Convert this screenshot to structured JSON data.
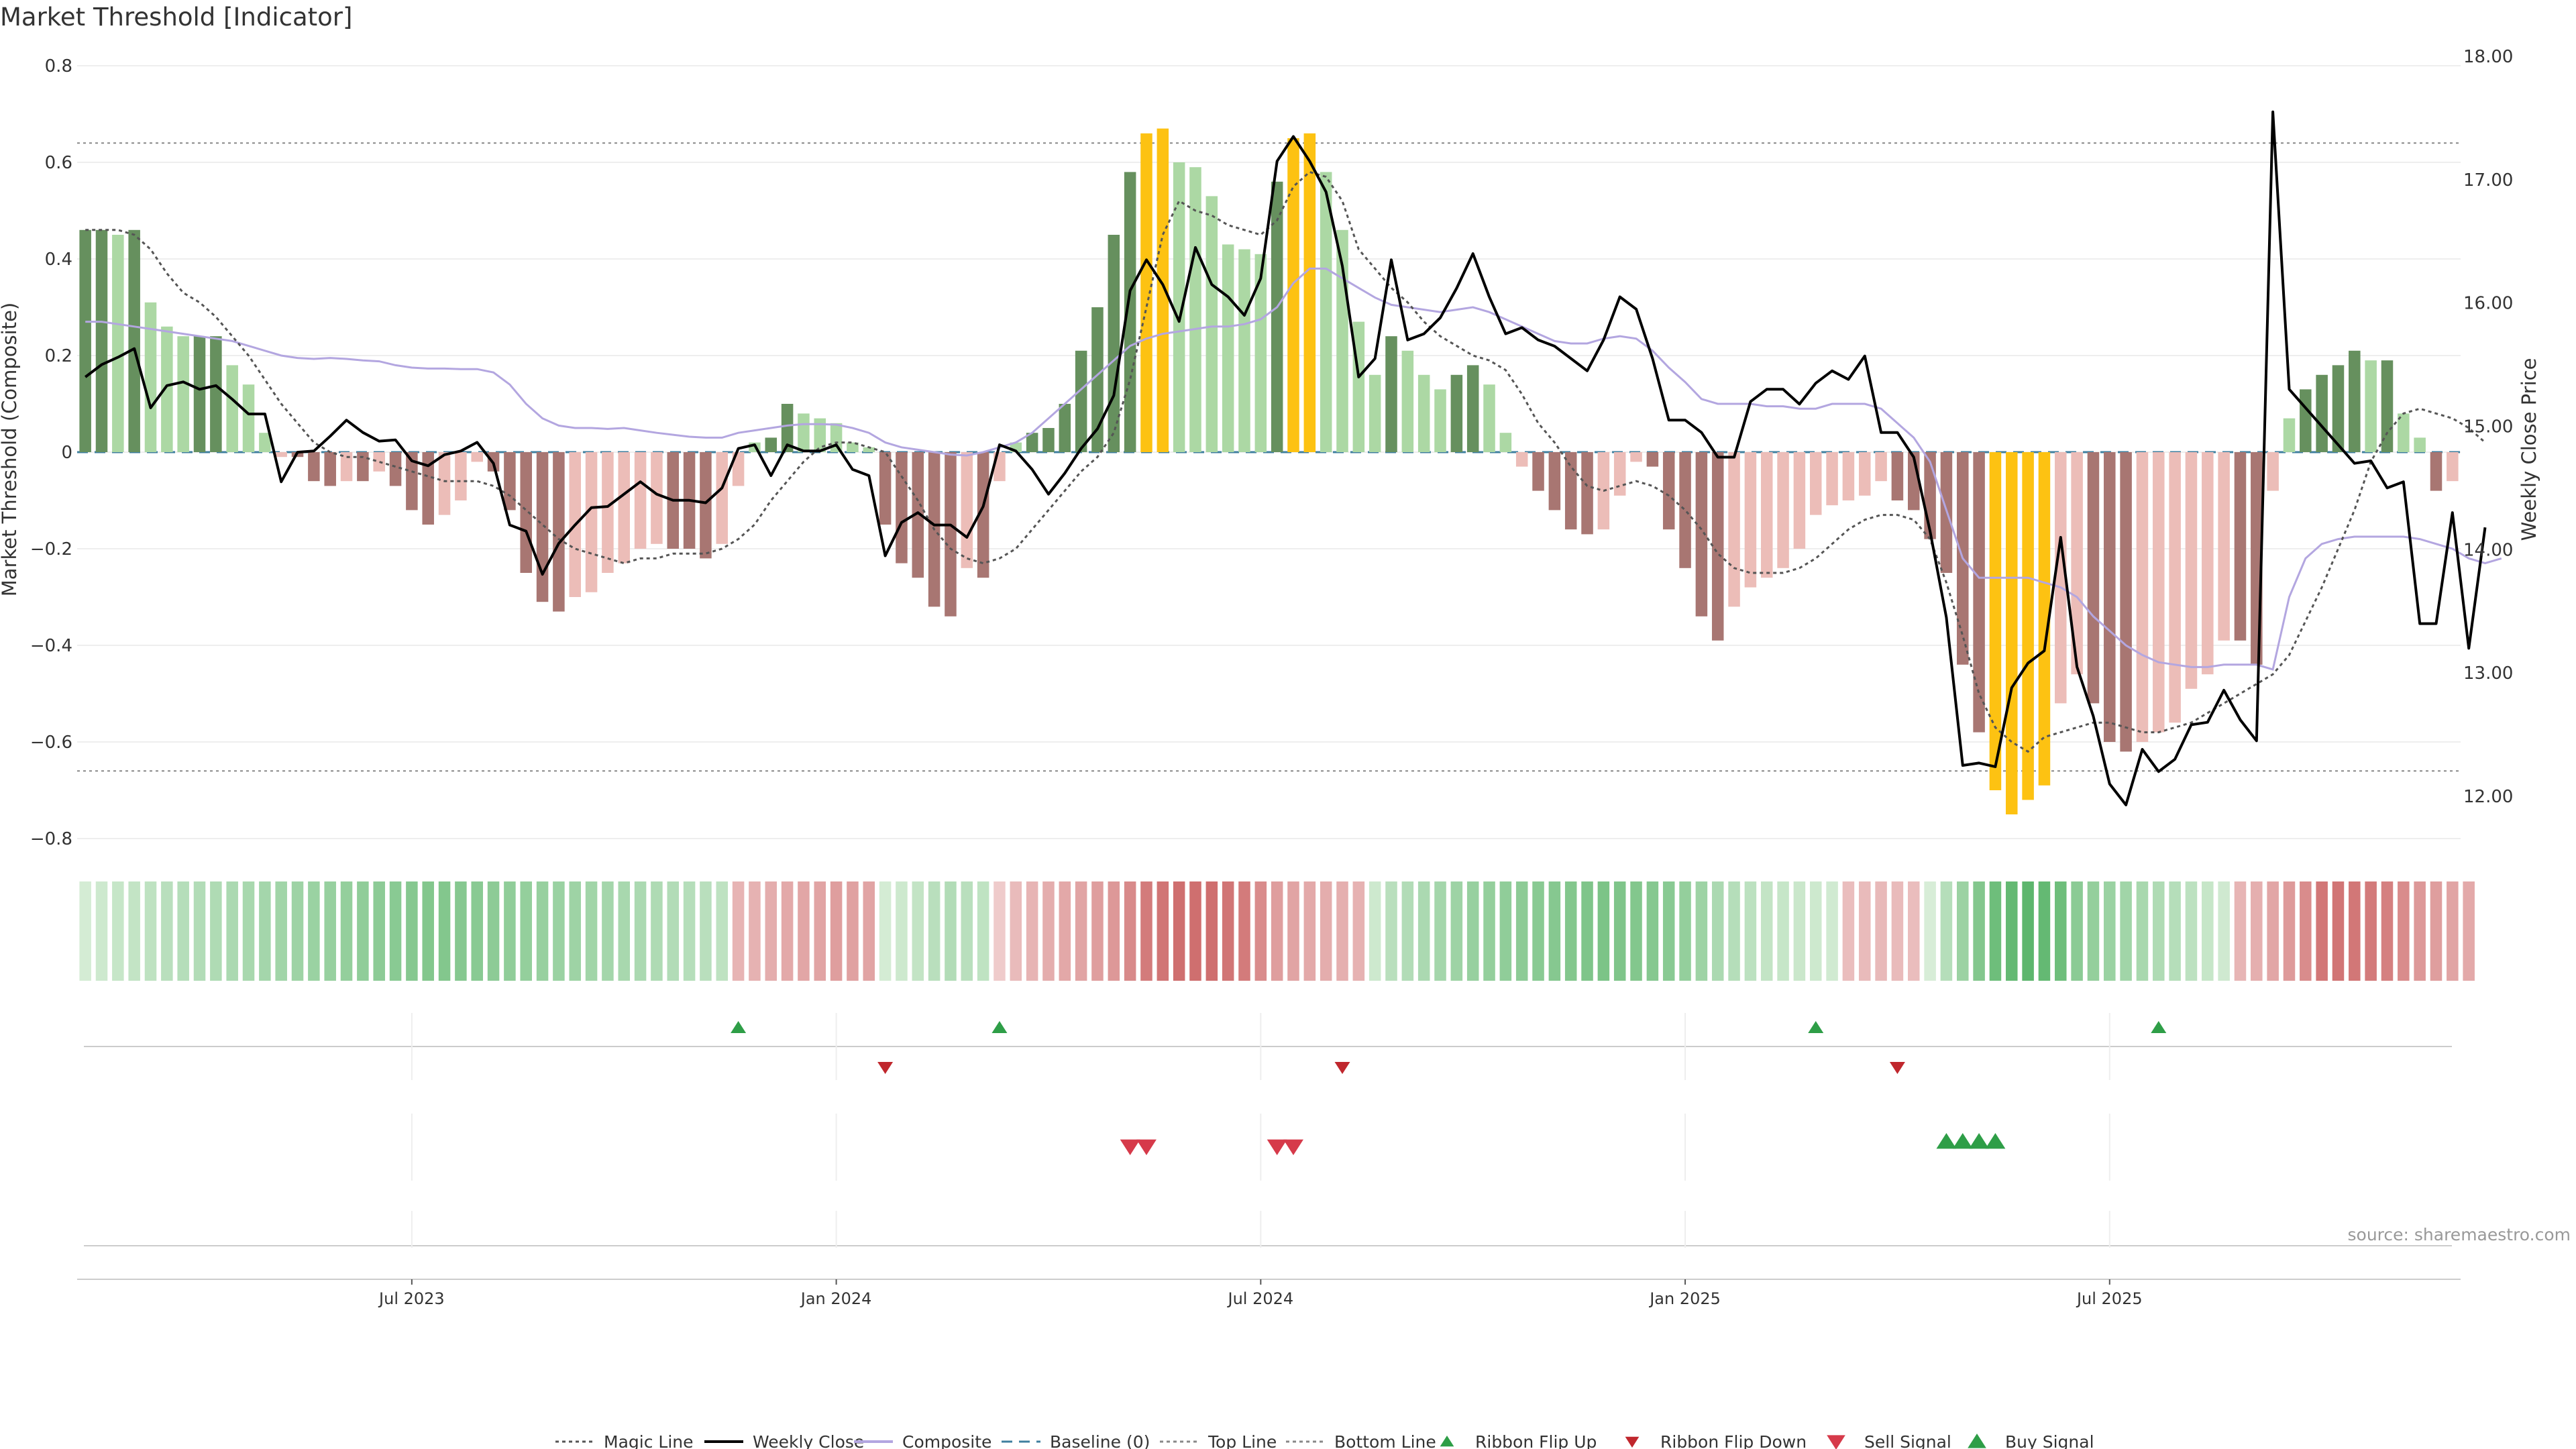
{
  "chart_data": {
    "type": "bar",
    "title": "Market Threshold [Indicator]",
    "ylabel": "Market Threshold (Composite)",
    "ylabel_right": "Weekly Close Price",
    "ylim": [
      -0.88,
      0.8
    ],
    "ylim_right": [
      11.6,
      18.0
    ],
    "y_ticks": [
      "0.8",
      "0.6",
      "0.4",
      "0.2",
      "0",
      "−0.2",
      "−0.4",
      "−0.6",
      "−0.8"
    ],
    "y_tick_values": [
      0.8,
      0.6,
      0.4,
      0.2,
      0,
      -0.2,
      -0.4,
      -0.6,
      -0.8
    ],
    "y_right_ticks": [
      "18.00",
      "17.00",
      "16.00",
      "15.00",
      "14.00",
      "13.00",
      "12.00"
    ],
    "y_right_tick_values": [
      18,
      17,
      16,
      15,
      14,
      13,
      12
    ],
    "x_ticks": [
      "Jul 2023",
      "Jan 2024",
      "Jul 2024",
      "Jan 2025",
      "Jul 2025"
    ],
    "x_tick_weeks": [
      20,
      46,
      72,
      98,
      124
    ],
    "top_line": 0.64,
    "bottom_line": -0.66,
    "composite_bars": [
      0.46,
      0.46,
      0.45,
      0.46,
      0.31,
      0.26,
      0.24,
      0.24,
      0.24,
      0.18,
      0.14,
      0.04,
      -0.01,
      -0.01,
      -0.06,
      -0.07,
      -0.06,
      -0.06,
      -0.04,
      -0.07,
      -0.12,
      -0.15,
      -0.13,
      -0.1,
      -0.02,
      -0.04,
      -0.12,
      -0.25,
      -0.31,
      -0.33,
      -0.3,
      -0.29,
      -0.25,
      -0.23,
      -0.2,
      -0.19,
      -0.2,
      -0.2,
      -0.22,
      -0.19,
      -0.07,
      0.02,
      0.03,
      0.1,
      0.08,
      0.07,
      0.06,
      0.02,
      0.01,
      -0.15,
      -0.23,
      -0.26,
      -0.32,
      -0.34,
      -0.24,
      -0.26,
      -0.06,
      0.02,
      0.04,
      0.05,
      0.1,
      0.21,
      0.3,
      0.45,
      0.58,
      0.66,
      0.67,
      0.6,
      0.59,
      0.53,
      0.43,
      0.42,
      0.41,
      0.56,
      0.65,
      0.66,
      0.58,
      0.46,
      0.27,
      0.16,
      0.24,
      0.21,
      0.16,
      0.13,
      0.16,
      0.18,
      0.14,
      0.04,
      -0.03,
      -0.08,
      -0.12,
      -0.16,
      -0.17,
      -0.16,
      -0.09,
      -0.02,
      -0.03,
      -0.16,
      -0.24,
      -0.34,
      -0.39,
      -0.32,
      -0.28,
      -0.26,
      -0.24,
      -0.2,
      -0.13,
      -0.11,
      -0.1,
      -0.09,
      -0.06,
      -0.1,
      -0.12,
      -0.18,
      -0.25,
      -0.44,
      -0.58,
      -0.7,
      -0.75,
      -0.72,
      -0.69,
      -0.52,
      -0.46,
      -0.52,
      -0.6,
      -0.62,
      -0.6,
      -0.58,
      -0.56,
      -0.49,
      -0.46,
      -0.39,
      -0.39,
      -0.44,
      -0.08,
      0.07,
      0.13,
      0.16,
      0.18,
      0.21,
      0.19,
      0.19,
      0.08,
      0.03,
      -0.08,
      -0.06
    ],
    "weekly_close": [
      15.4,
      15.5,
      15.56,
      15.63,
      15.15,
      15.33,
      15.36,
      15.3,
      15.33,
      15.22,
      15.1,
      15.1,
      14.55,
      14.79,
      14.8,
      14.92,
      15.05,
      14.95,
      14.88,
      14.89,
      14.72,
      14.68,
      14.77,
      14.8,
      14.87,
      14.7,
      14.2,
      14.15,
      13.8,
      14.05,
      14.2,
      14.34,
      14.35,
      14.45,
      14.55,
      14.45,
      14.4,
      14.4,
      14.38,
      14.5,
      14.82,
      14.85,
      14.6,
      14.85,
      14.8,
      14.8,
      14.85,
      14.65,
      14.6,
      13.95,
      14.22,
      14.3,
      14.2,
      14.2,
      14.1,
      14.35,
      14.85,
      14.8,
      14.65,
      14.45,
      14.62,
      14.82,
      14.98,
      15.25,
      16.1,
      16.35,
      16.15,
      15.85,
      16.45,
      16.15,
      16.05,
      15.9,
      16.2,
      17.15,
      17.35,
      17.15,
      16.9,
      16.3,
      15.4,
      15.55,
      16.35,
      15.7,
      15.75,
      15.88,
      16.12,
      16.4,
      16.05,
      15.75,
      15.8,
      15.7,
      15.65,
      15.55,
      15.45,
      15.7,
      16.05,
      15.95,
      15.55,
      15.05,
      15.05,
      14.95,
      14.75,
      14.75,
      15.2,
      15.3,
      15.3,
      15.18,
      15.35,
      15.45,
      15.38,
      15.57,
      14.95,
      14.95,
      14.75,
      14.15,
      13.45,
      12.25,
      12.27,
      12.24,
      12.88,
      13.08,
      13.18,
      14.1,
      13.05,
      12.65,
      12.1,
      11.93,
      12.38,
      12.2,
      12.3,
      12.58,
      12.6,
      12.86,
      12.62,
      12.45,
      17.55,
      15.3,
      15.15,
      15.0,
      14.85,
      14.7,
      14.72,
      14.5,
      14.55,
      13.4,
      13.4,
      14.3,
      13.2,
      14.18
    ],
    "magic_line": [
      0.46,
      0.46,
      0.46,
      0.45,
      0.42,
      0.37,
      0.33,
      0.31,
      0.28,
      0.24,
      0.2,
      0.15,
      0.1,
      0.06,
      0.02,
      0.0,
      -0.01,
      -0.01,
      -0.02,
      -0.03,
      -0.04,
      -0.05,
      -0.06,
      -0.06,
      -0.06,
      -0.07,
      -0.09,
      -0.12,
      -0.15,
      -0.18,
      -0.2,
      -0.21,
      -0.22,
      -0.23,
      -0.22,
      -0.22,
      -0.21,
      -0.21,
      -0.21,
      -0.2,
      -0.18,
      -0.15,
      -0.1,
      -0.06,
      -0.02,
      0.01,
      0.02,
      0.02,
      0.01,
      0.0,
      -0.05,
      -0.1,
      -0.16,
      -0.2,
      -0.22,
      -0.23,
      -0.22,
      -0.2,
      -0.16,
      -0.12,
      -0.08,
      -0.04,
      -0.01,
      0.04,
      0.15,
      0.3,
      0.45,
      0.52,
      0.5,
      0.49,
      0.47,
      0.46,
      0.45,
      0.48,
      0.55,
      0.58,
      0.57,
      0.52,
      0.42,
      0.38,
      0.34,
      0.31,
      0.27,
      0.24,
      0.22,
      0.2,
      0.19,
      0.17,
      0.12,
      0.06,
      0.02,
      -0.03,
      -0.07,
      -0.08,
      -0.07,
      -0.06,
      -0.07,
      -0.09,
      -0.12,
      -0.16,
      -0.21,
      -0.24,
      -0.25,
      -0.25,
      -0.25,
      -0.24,
      -0.22,
      -0.19,
      -0.16,
      -0.14,
      -0.13,
      -0.13,
      -0.14,
      -0.18,
      -0.27,
      -0.38,
      -0.5,
      -0.57,
      -0.6,
      -0.62,
      -0.59,
      -0.58,
      -0.57,
      -0.56,
      -0.56,
      -0.57,
      -0.58,
      -0.58,
      -0.57,
      -0.56,
      -0.54,
      -0.52,
      -0.5,
      -0.48,
      -0.46,
      -0.42,
      -0.35,
      -0.28,
      -0.2,
      -0.12,
      -0.02,
      0.04,
      0.08,
      0.09,
      0.08,
      0.07,
      0.05,
      0.02
    ],
    "composite_line": [
      0.27,
      0.27,
      0.265,
      0.26,
      0.255,
      0.25,
      0.245,
      0.24,
      0.235,
      0.23,
      0.22,
      0.21,
      0.2,
      0.195,
      0.193,
      0.195,
      0.193,
      0.19,
      0.188,
      0.18,
      0.175,
      0.173,
      0.173,
      0.172,
      0.172,
      0.165,
      0.14,
      0.1,
      0.07,
      0.055,
      0.05,
      0.05,
      0.048,
      0.05,
      0.045,
      0.04,
      0.036,
      0.032,
      0.03,
      0.03,
      0.04,
      0.045,
      0.05,
      0.055,
      0.058,
      0.058,
      0.057,
      0.05,
      0.04,
      0.02,
      0.01,
      0.005,
      0.0,
      -0.005,
      -0.007,
      0.0,
      0.01,
      0.02,
      0.04,
      0.07,
      0.1,
      0.13,
      0.16,
      0.19,
      0.22,
      0.235,
      0.245,
      0.25,
      0.255,
      0.26,
      0.26,
      0.265,
      0.275,
      0.3,
      0.35,
      0.38,
      0.38,
      0.36,
      0.34,
      0.32,
      0.305,
      0.3,
      0.295,
      0.29,
      0.295,
      0.3,
      0.29,
      0.275,
      0.26,
      0.245,
      0.23,
      0.225,
      0.225,
      0.235,
      0.24,
      0.235,
      0.21,
      0.175,
      0.145,
      0.11,
      0.1,
      0.1,
      0.1,
      0.095,
      0.095,
      0.09,
      0.09,
      0.1,
      0.1,
      0.1,
      0.09,
      0.06,
      0.03,
      -0.02,
      -0.12,
      -0.22,
      -0.26,
      -0.26,
      -0.26,
      -0.26,
      -0.27,
      -0.28,
      -0.3,
      -0.34,
      -0.37,
      -0.4,
      -0.42,
      -0.435,
      -0.44,
      -0.445,
      -0.445,
      -0.44,
      -0.44,
      -0.44,
      -0.45,
      -0.3,
      -0.22,
      -0.19,
      -0.18,
      -0.175,
      -0.175,
      -0.175,
      -0.175,
      -0.18,
      -0.19,
      -0.2,
      -0.22,
      -0.23,
      -0.22
    ],
    "ribbon": [
      0.12,
      0.16,
      0.2,
      0.22,
      0.25,
      0.28,
      0.3,
      0.32,
      0.34,
      0.36,
      0.38,
      0.4,
      0.42,
      0.44,
      0.46,
      0.48,
      0.5,
      0.52,
      0.54,
      0.56,
      0.58,
      0.6,
      0.6,
      0.58,
      0.56,
      0.54,
      0.52,
      0.5,
      0.48,
      0.46,
      0.44,
      0.42,
      0.4,
      0.38,
      0.36,
      0.34,
      0.32,
      0.3,
      0.28,
      0.25,
      -0.36,
      -0.38,
      -0.42,
      -0.45,
      -0.48,
      -0.5,
      -0.55,
      -0.52,
      -0.5,
      0.12,
      0.16,
      0.22,
      0.28,
      0.32,
      0.28,
      0.24,
      -0.16,
      -0.3,
      -0.36,
      -0.42,
      -0.46,
      -0.5,
      -0.55,
      -0.6,
      -0.72,
      -0.85,
      -0.9,
      -0.95,
      -0.95,
      -0.95,
      -0.9,
      -0.85,
      -0.7,
      -0.55,
      -0.5,
      -0.45,
      -0.42,
      -0.4,
      -0.38,
      0.16,
      0.28,
      0.32,
      0.36,
      0.4,
      0.44,
      0.48,
      0.5,
      0.52,
      0.54,
      0.56,
      0.58,
      0.6,
      0.62,
      0.64,
      0.62,
      0.6,
      0.58,
      0.56,
      0.5,
      0.44,
      0.36,
      0.3,
      0.26,
      0.22,
      0.2,
      0.18,
      0.16,
      0.14,
      -0.28,
      -0.3,
      -0.32,
      -0.3,
      -0.28,
      0.1,
      0.3,
      0.45,
      0.6,
      0.72,
      0.78,
      0.82,
      0.78,
      0.72,
      0.55,
      0.5,
      0.46,
      0.42,
      0.38,
      0.34,
      0.3,
      0.26,
      0.2,
      0.15,
      -0.35,
      -0.4,
      -0.48,
      -0.58,
      -0.7,
      -0.88,
      -0.9,
      -0.88,
      -0.85,
      -0.8,
      -0.7,
      -0.6,
      -0.55,
      -0.5,
      -0.45
    ],
    "markers": {
      "ribbon_flip_up": [
        40,
        56,
        106,
        127
      ],
      "ribbon_flip_down": [
        49,
        77,
        111
      ],
      "sell_signal": [
        64,
        65,
        73,
        74
      ],
      "buy_signal": [
        114,
        115,
        116,
        117
      ]
    },
    "legend": [
      {
        "label": "Magic Line",
        "kind": "dotted",
        "color": "#555555"
      },
      {
        "label": "Weekly Close",
        "kind": "solid",
        "color": "#000000"
      },
      {
        "label": "Composite",
        "kind": "solid",
        "color": "#b3a6e0"
      },
      {
        "label": "Baseline (0)",
        "kind": "dashed",
        "color": "#3f7f9f"
      },
      {
        "label": "Top Line",
        "kind": "dotted",
        "color": "#888888"
      },
      {
        "label": "Bottom Line",
        "kind": "dotted",
        "color": "#888888"
      },
      {
        "label": "Ribbon Flip Up",
        "kind": "tri-up",
        "color": "#2e9e47"
      },
      {
        "label": "Ribbon Flip Down",
        "kind": "tri-down",
        "color": "#c0272d"
      },
      {
        "label": "Sell Signal",
        "kind": "tri-down-big",
        "color": "#d63a4a"
      },
      {
        "label": "Buy Signal",
        "kind": "tri-up-big",
        "color": "#2e9e47"
      }
    ],
    "legend_position": "bottom-center",
    "grid": true,
    "source": "source: sharemaestro.com",
    "colors": {
      "bar_light_green": "#acd8a4",
      "bar_dark_green": "#66905e",
      "bar_light_red": "#ecbdb8",
      "bar_dark_red": "#a87672",
      "bar_extreme": "#fdc212"
    }
  }
}
